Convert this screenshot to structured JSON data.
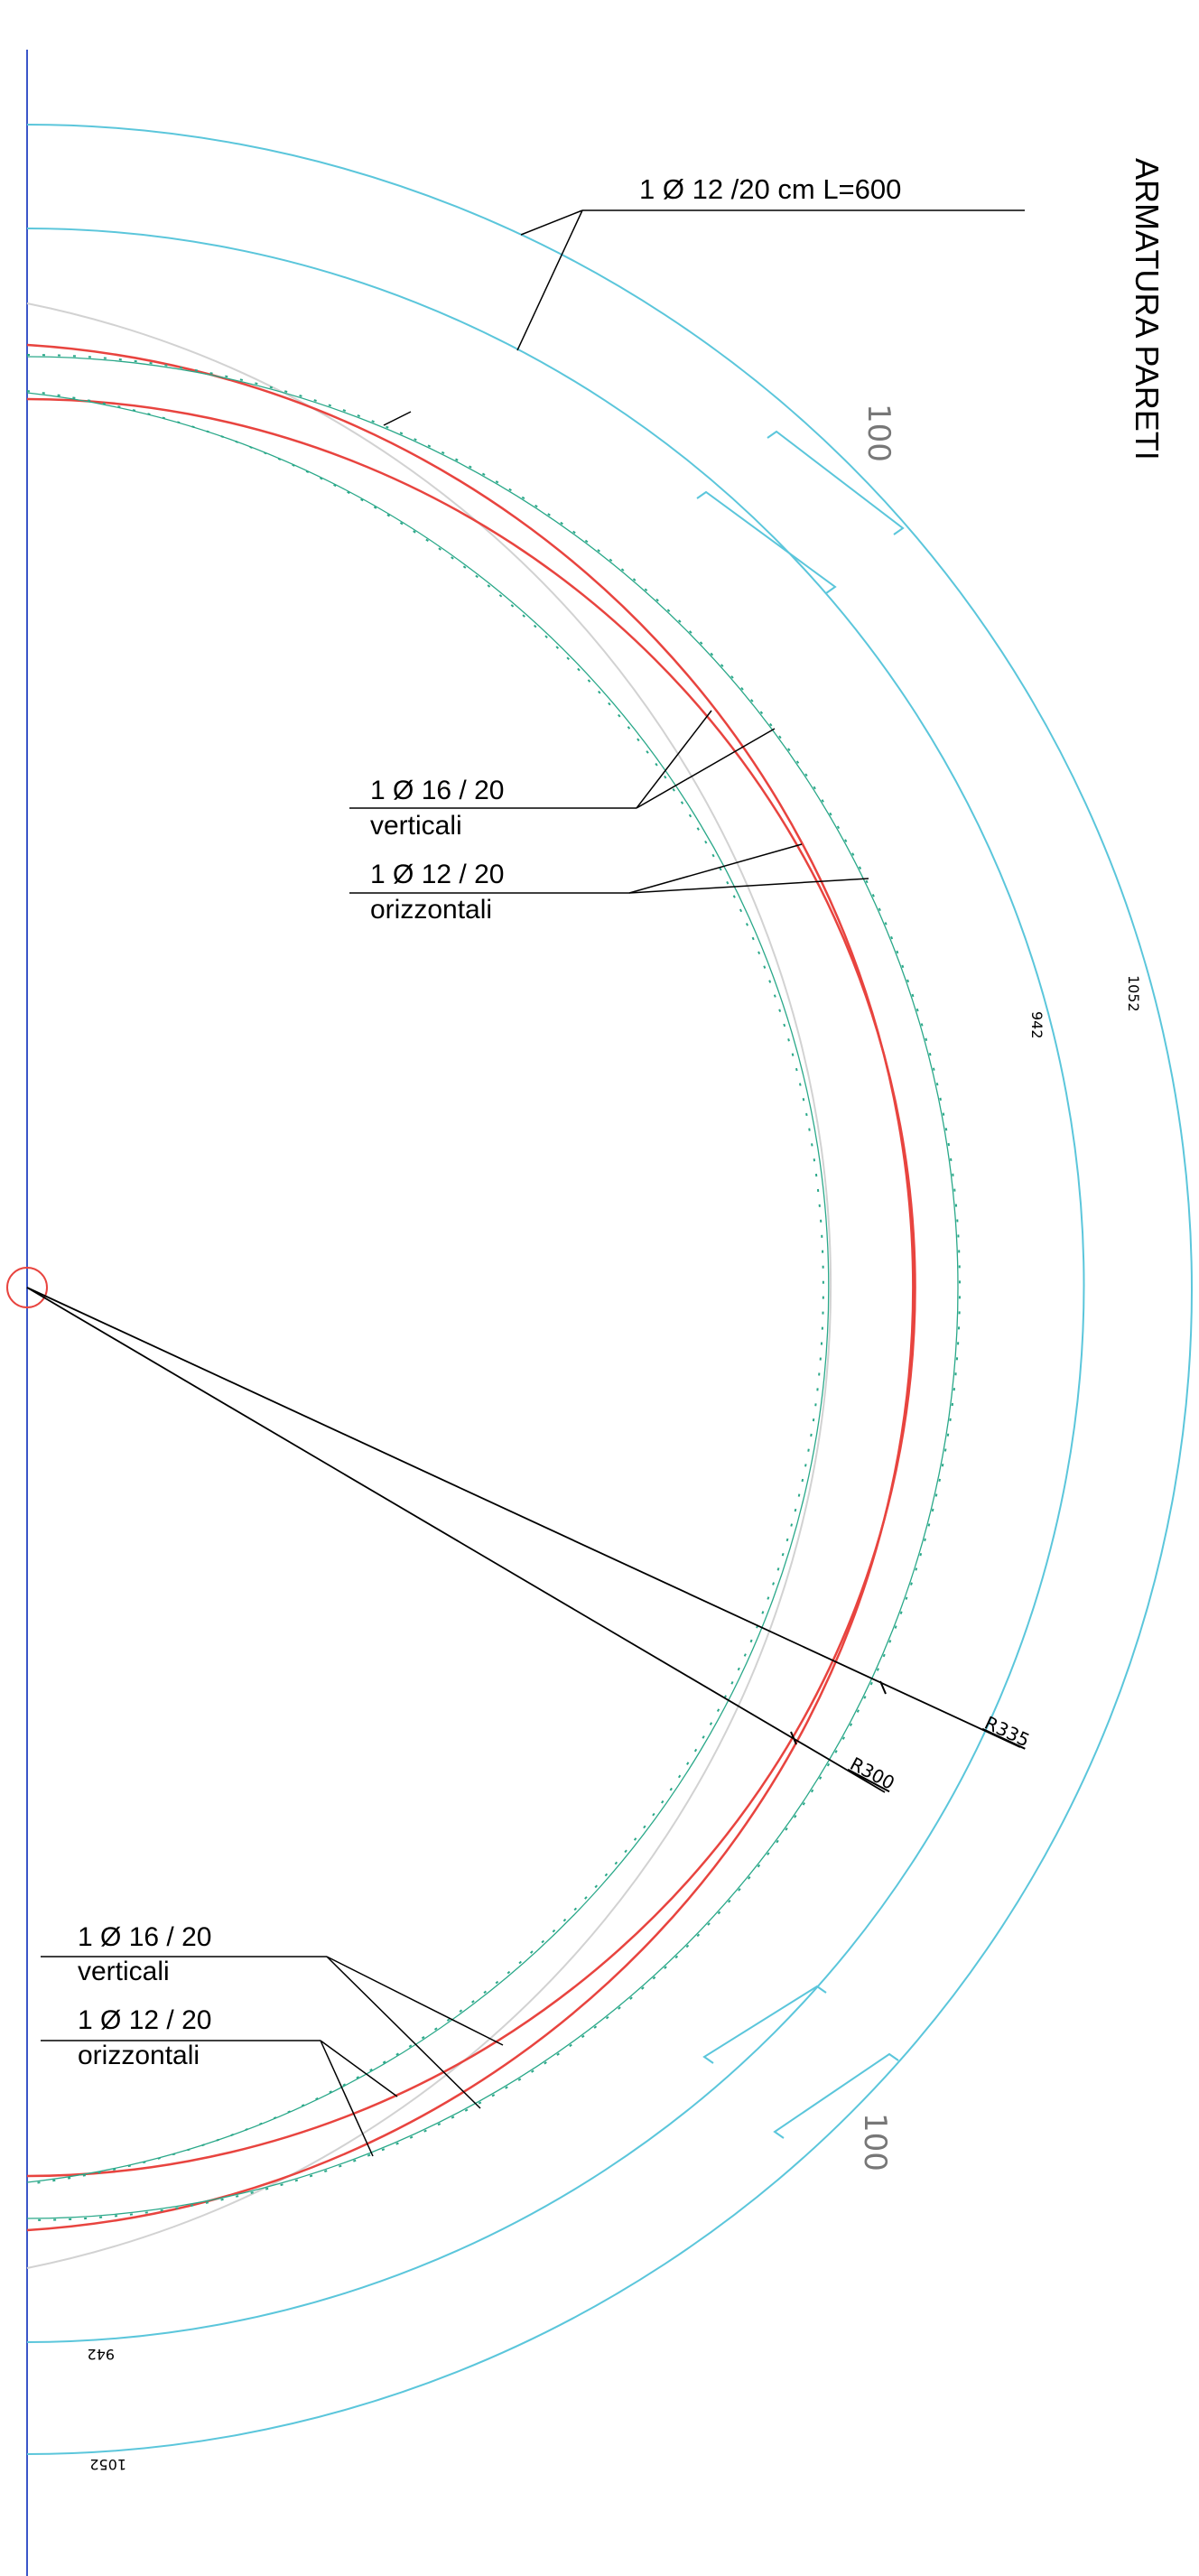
{
  "drawing": {
    "title": "ARMATURA PARETI",
    "colors": {
      "background": "#ffffff",
      "axis": "#3b56c9",
      "formwork": "#5bc6db",
      "wall_face": "#e8443f",
      "rebar": "#2aa889",
      "ghost": "#d2d2d2",
      "leader": "#000000"
    },
    "annotations": {
      "outer_bar": "1 Ø 12 /20 cm  L=600",
      "upper_vertical_bar": "1 Ø 16 / 20",
      "upper_vertical_word": "verticali",
      "upper_horizontal_bar": "1 Ø 12 / 20",
      "upper_horizontal_word": "orizzontali",
      "lower_vertical_bar": "1 Ø 16 / 20",
      "lower_vertical_word": "verticali",
      "lower_horizontal_bar": "1 Ø 12 / 20",
      "lower_horizontal_word": "orizzontali"
    },
    "dimensions": {
      "overlap_top": "100",
      "overlap_bottom": "100",
      "inner_radius": "R300",
      "outer_radius": "R335",
      "diameter_942_right": "942",
      "diameter_1052_right": "1052",
      "diameter_942_bottom": "942",
      "diameter_1052_bottom": "1052"
    }
  }
}
